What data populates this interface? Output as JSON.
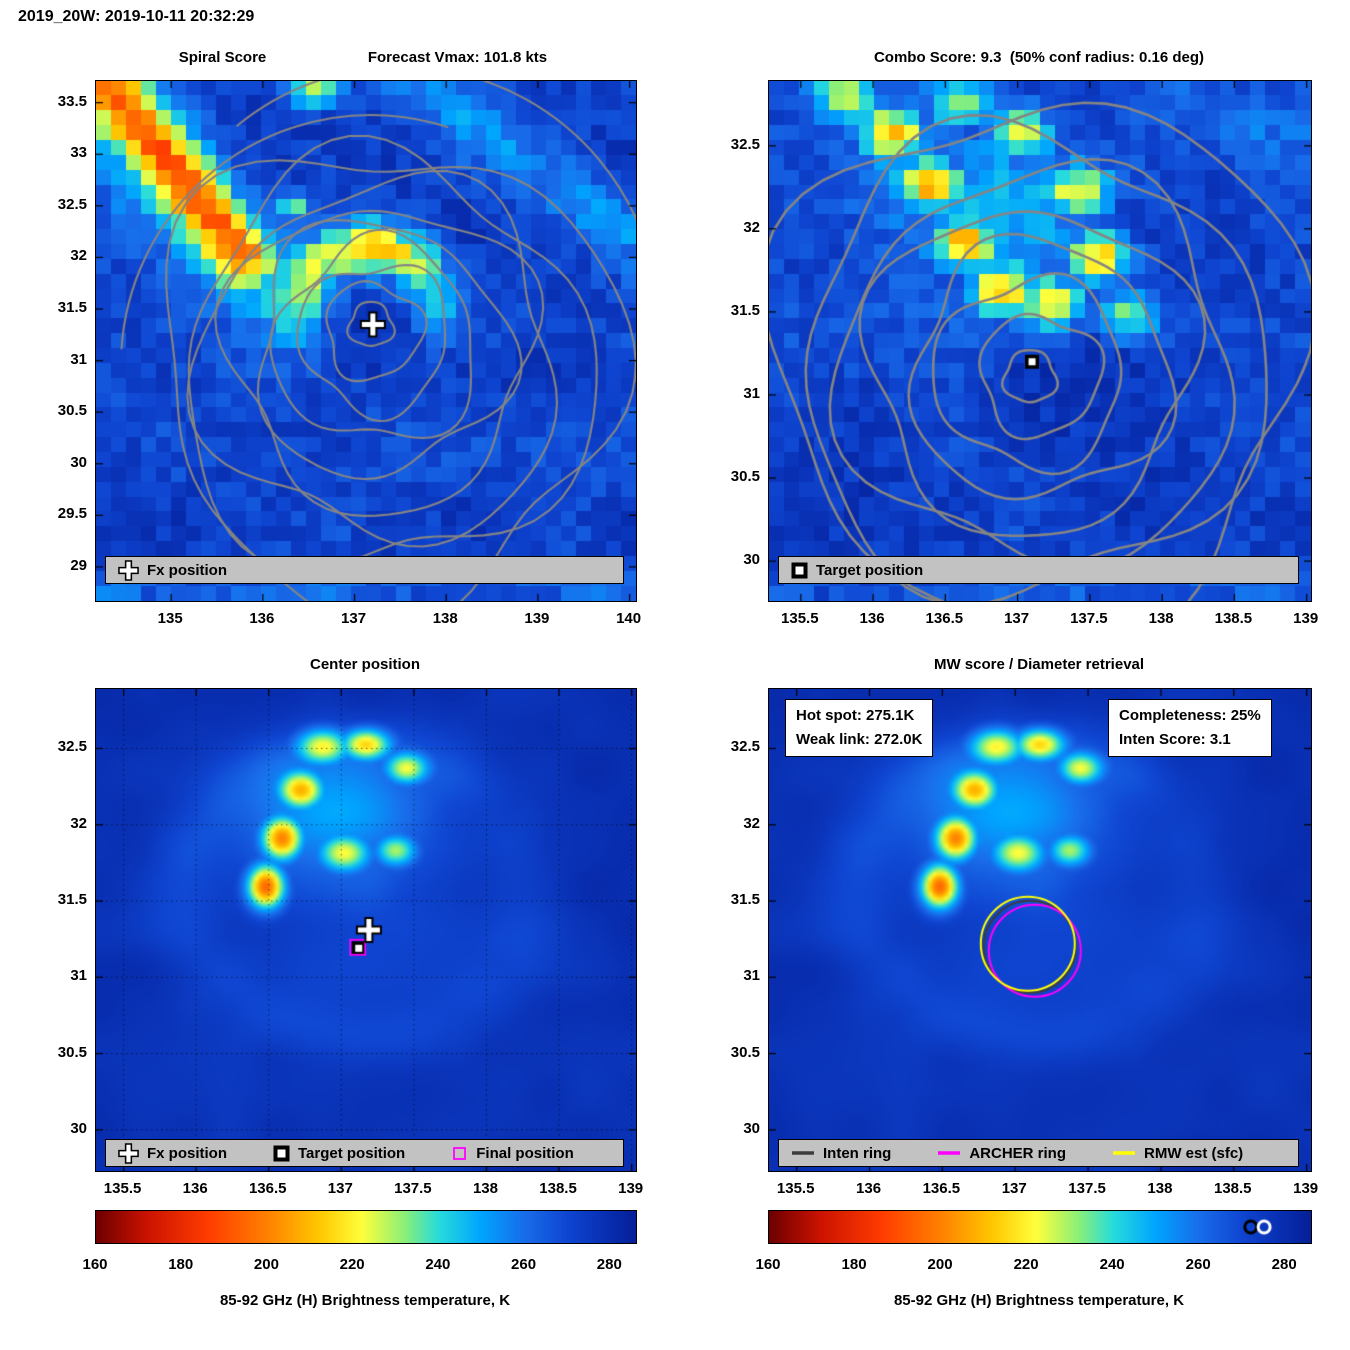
{
  "header": {
    "title": "2019_20W: 2019-10-11 20:32:29"
  },
  "colorbar": {
    "label": "85-92 GHz (H) Brightness temperature, K",
    "ticks": [
      160,
      180,
      200,
      220,
      240,
      260,
      280
    ],
    "range": [
      160,
      286
    ]
  },
  "colors": {
    "contour": "#858585",
    "legend_bg": "#c2c2c2",
    "archer_ring": "#ff00ff",
    "rmw_ring": "#ffff00",
    "inten_ring": "#3c3c3c",
    "fx_marker": "#ffffff",
    "target_marker": "#000000"
  },
  "panels": {
    "spiral": {
      "title": "Spiral Score",
      "subtitle": "Forecast Vmax: 101.8 kts",
      "x_ticks": [
        135,
        136,
        137,
        138,
        139,
        140
      ],
      "y_ticks": [
        33.5,
        33,
        32.5,
        32,
        31.5,
        31,
        30.5,
        30,
        29.5,
        29
      ],
      "x_range": [
        134.18,
        140.07
      ],
      "y_range": [
        28.67,
        33.71
      ],
      "legend": [
        {
          "marker": "fx-cross",
          "label": "Fx position"
        }
      ],
      "markers": [
        {
          "type": "fx-cross",
          "lon": 137.2,
          "lat": 31.35
        }
      ]
    },
    "combo": {
      "title": "Combo Score: 9.3  (50% conf radius: 0.16 deg)",
      "x_ticks": [
        135.5,
        136,
        136.5,
        137,
        137.5,
        138,
        138.5,
        139
      ],
      "y_ticks": [
        32.5,
        32,
        31.5,
        31,
        30.5,
        30
      ],
      "x_range": [
        135.28,
        139.03
      ],
      "y_range": [
        29.76,
        32.89
      ],
      "legend": [
        {
          "marker": "target-square",
          "label": "Target position"
        }
      ],
      "markers": [
        {
          "type": "target-square",
          "lon": 137.1,
          "lat": 31.2
        }
      ]
    },
    "center": {
      "title": "Center position",
      "x_ticks": [
        135.5,
        136,
        136.5,
        137,
        137.5,
        138,
        138.5,
        139
      ],
      "y_ticks": [
        32.5,
        32,
        31.5,
        31,
        30.5,
        30
      ],
      "x_range": [
        135.31,
        139.03
      ],
      "y_range": [
        29.73,
        32.89
      ],
      "legend": [
        {
          "marker": "fx-cross",
          "label": "Fx position"
        },
        {
          "marker": "target-square",
          "label": "Target position"
        },
        {
          "marker": "final-square",
          "label": "Final position"
        }
      ],
      "markers": [
        {
          "type": "fx-cross",
          "lon": 137.19,
          "lat": 31.31
        },
        {
          "type": "target-square",
          "lon": 137.12,
          "lat": 31.19
        },
        {
          "type": "final-square",
          "lon": 137.12,
          "lat": 31.19
        }
      ]
    },
    "mw": {
      "title": "MW score / Diameter retrieval",
      "hot_spot": "Hot spot: 275.1K",
      "weak_link": "Weak link: 272.0K",
      "completeness": "Completeness: 25%",
      "inten_score": "Inten Score: 3.1",
      "x_ticks": [
        135.5,
        136,
        136.5,
        137,
        137.5,
        138,
        138.5,
        139
      ],
      "y_ticks": [
        32.5,
        32,
        31.5,
        31,
        30.5,
        30
      ],
      "x_range": [
        135.31,
        139.03
      ],
      "y_range": [
        29.73,
        32.89
      ],
      "legend": [
        {
          "marker": "inten-line",
          "label": "Inten ring"
        },
        {
          "marker": "archer-line",
          "label": "ARCHER ring"
        },
        {
          "marker": "rmw-line",
          "label": "RMW est (sfc)"
        }
      ],
      "ring_center": {
        "lon": 137.1,
        "lat": 31.2
      },
      "colorbar_markers": [
        {
          "value": 272.0,
          "symbol": "black-circle"
        },
        {
          "value": 275.1,
          "symbol": "white-circle"
        }
      ]
    }
  },
  "chart_data": [
    {
      "type": "heatmap",
      "panel": "top-left",
      "title": "Spiral Score",
      "subtitle": "Forecast Vmax: 101.8 kts",
      "x_ticks": [
        135,
        136,
        137,
        138,
        139,
        140
      ],
      "y_ticks": [
        33.5,
        33,
        32.5,
        32,
        31.5,
        31,
        30.5,
        30,
        29.5,
        29
      ],
      "x_range": [
        134.2,
        140.1
      ],
      "y_range": [
        28.7,
        33.7
      ],
      "value_label": "85-92 GHz (H) Brightness temperature, K",
      "value_ticks": [
        160,
        180,
        200,
        220,
        240,
        260,
        280
      ],
      "overlays": [
        "gray spiral-score contour field converging on fix position"
      ],
      "markers": [
        {
          "label": "Fx position",
          "symbol": "white-cross",
          "lon": 137.2,
          "lat": 31.35
        }
      ],
      "legend": [
        "Fx position"
      ],
      "grid": false
    },
    {
      "type": "heatmap",
      "panel": "top-right",
      "title": "Combo Score: 9.3  (50% conf radius: 0.16 deg)",
      "x_ticks": [
        135.5,
        136,
        136.5,
        137,
        137.5,
        138,
        138.5,
        139
      ],
      "y_ticks": [
        32.5,
        32,
        31.5,
        31,
        30.5,
        30
      ],
      "x_range": [
        135.3,
        139.0
      ],
      "y_range": [
        29.8,
        32.9
      ],
      "value_label": "85-92 GHz (H) Brightness temperature, K",
      "value_ticks": [
        160,
        180,
        200,
        220,
        240,
        260,
        280
      ],
      "overlays": [
        "gray combo-score contour rings centered on target"
      ],
      "markers": [
        {
          "label": "Target position",
          "symbol": "black-white-square",
          "lon": 137.1,
          "lat": 31.2
        }
      ],
      "legend": [
        "Target position"
      ],
      "grid": false
    },
    {
      "type": "heatmap",
      "panel": "bottom-left",
      "title": "Center position",
      "x_ticks": [
        135.5,
        136,
        136.5,
        137,
        137.5,
        138,
        138.5,
        139
      ],
      "y_ticks": [
        32.5,
        32,
        31.5,
        31,
        30.5,
        30
      ],
      "x_range": [
        135.3,
        139.0
      ],
      "y_range": [
        29.7,
        32.9
      ],
      "value_label": "85-92 GHz (H) Brightness temperature, K",
      "value_ticks": [
        160,
        180,
        200,
        220,
        240,
        260,
        280
      ],
      "markers": [
        {
          "label": "Fx position",
          "symbol": "white-cross",
          "lon": 137.19,
          "lat": 31.31
        },
        {
          "label": "Target position",
          "symbol": "black-white-square",
          "lon": 137.12,
          "lat": 31.19
        },
        {
          "label": "Final position",
          "symbol": "magenta-open-square",
          "lon": 137.12,
          "lat": 31.19
        }
      ],
      "legend": [
        "Fx position",
        "Target position",
        "Final position"
      ],
      "grid": "dotted"
    },
    {
      "type": "heatmap",
      "panel": "bottom-right",
      "title": "MW score / Diameter retrieval",
      "x_ticks": [
        135.5,
        136,
        136.5,
        137,
        137.5,
        138,
        138.5,
        139
      ],
      "y_ticks": [
        32.5,
        32,
        31.5,
        31,
        30.5,
        30
      ],
      "x_range": [
        135.3,
        139.0
      ],
      "y_range": [
        29.7,
        32.9
      ],
      "value_label": "85-92 GHz (H) Brightness temperature, K",
      "value_ticks": [
        160,
        180,
        200,
        220,
        240,
        260,
        280
      ],
      "annotations": [
        "Hot spot: 275.1K",
        "Weak link: 272.0K",
        "Completeness: 25%",
        "Inten Score: 3.1"
      ],
      "rings": [
        {
          "label": "Inten ring",
          "color": "dark-gray"
        },
        {
          "label": "ARCHER ring",
          "color": "magenta"
        },
        {
          "label": "RMW est (sfc)",
          "color": "yellow"
        }
      ],
      "ring_center": {
        "lon": 137.1,
        "lat": 31.2
      },
      "colorbar_markers": [
        {
          "value": 272.0,
          "symbol": "black-circle"
        },
        {
          "value": 275.1,
          "symbol": "white-circle"
        }
      ],
      "legend": [
        "Inten ring",
        "ARCHER ring",
        "RMW est (sfc)"
      ],
      "grid": false
    }
  ]
}
